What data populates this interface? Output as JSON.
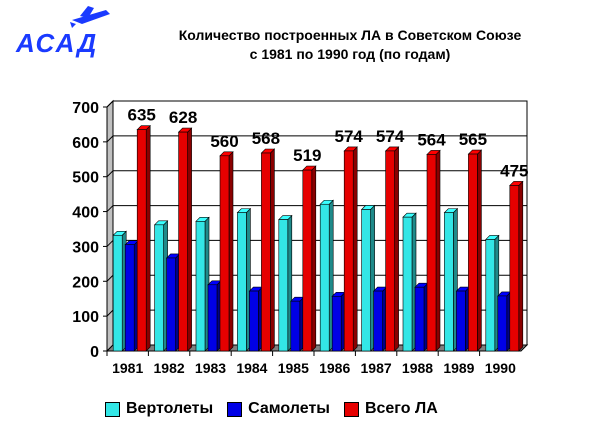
{
  "title": {
    "line1": "Количество построенных ЛА в Советском Союзе",
    "line2": "с 1981 по 1990 год (по годам)"
  },
  "logo": {
    "text": "АСАД",
    "icon": "airplane-logo-icon",
    "color": "#1a3aff"
  },
  "chart_data": {
    "type": "bar",
    "title": "Количество построенных ЛА в Советском Союзе с 1981 по 1990 год (по годам)",
    "categories": [
      "1981",
      "1982",
      "1983",
      "1984",
      "1985",
      "1986",
      "1987",
      "1988",
      "1989",
      "1990"
    ],
    "series": [
      {
        "name": "Вертолеты",
        "color": "#33e6e6",
        "values": [
          332,
          362,
          372,
          397,
          377,
          421,
          406,
          384,
          397,
          320
        ]
      },
      {
        "name": "Самолеты",
        "color": "#0000e6",
        "values": [
          305,
          267,
          190,
          172,
          143,
          157,
          172,
          183,
          172,
          158
        ]
      },
      {
        "name": "Всего ЛА",
        "color": "#e60000",
        "values": [
          635,
          628,
          560,
          568,
          519,
          574,
          574,
          564,
          565,
          475
        ]
      }
    ],
    "data_labels_series": "Всего ЛА",
    "ylim": [
      0,
      700
    ],
    "yticks": [
      0,
      100,
      200,
      300,
      400,
      500,
      600,
      700
    ],
    "grid": true,
    "legend_position": "bottom",
    "xlabel": "",
    "ylabel": ""
  }
}
